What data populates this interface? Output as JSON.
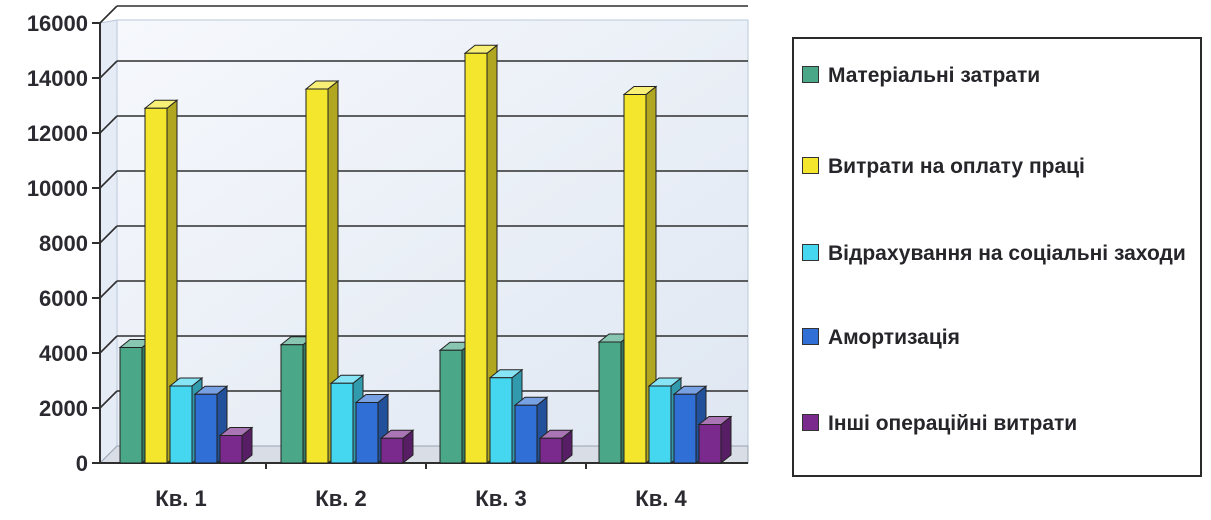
{
  "chart_data": {
    "type": "bar",
    "categories": [
      "Кв. 1",
      "Кв. 2",
      "Кв. 3",
      "Кв. 4"
    ],
    "series": [
      {
        "name": "Матеріальні затрати",
        "color": "#4aa888",
        "values": [
          4200,
          4300,
          4100,
          4400
        ]
      },
      {
        "name": "Витрати на оплату праці",
        "color": "#f4e62c",
        "values": [
          12900,
          13600,
          14900,
          13400
        ]
      },
      {
        "name": "Відрахування на соціальні заходи",
        "color": "#45d6f0",
        "values": [
          2800,
          2900,
          3100,
          2800
        ]
      },
      {
        "name": "Амортизація",
        "color": "#2f6fd6",
        "values": [
          2500,
          2200,
          2100,
          2500
        ]
      },
      {
        "name": "Інші операційні витрати",
        "color": "#7a2a8c",
        "values": [
          1000,
          900,
          900,
          1400
        ]
      }
    ],
    "yticks": [
      "0",
      "2000",
      "4000",
      "6000",
      "8000",
      "10000",
      "12000",
      "14000",
      "16000"
    ],
    "ylim": [
      0,
      16000
    ],
    "grid": true,
    "legend_position": "right",
    "three_d": true
  }
}
